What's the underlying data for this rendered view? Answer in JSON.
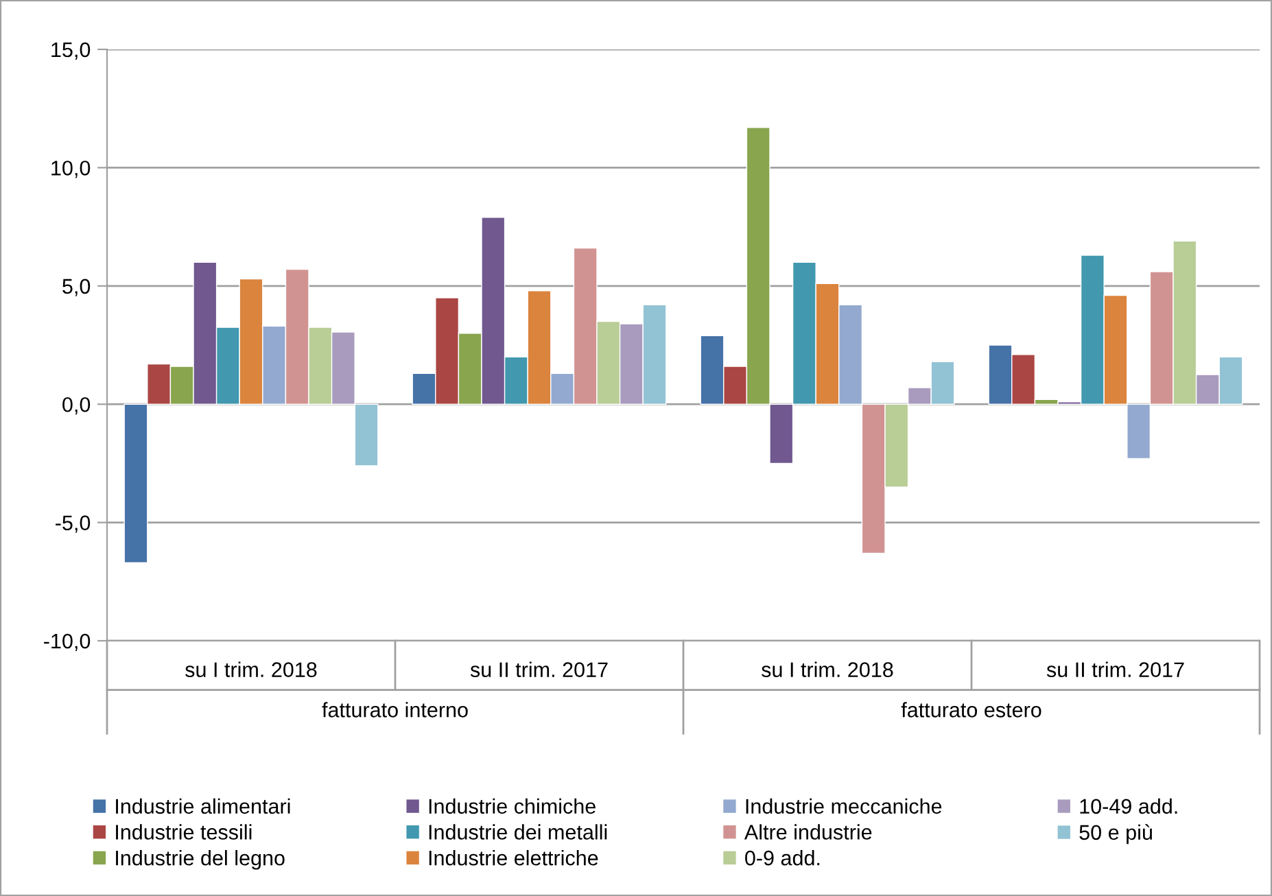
{
  "chart_data": {
    "type": "bar",
    "categories": [
      "su I trim. 2018",
      "su II trim. 2017",
      "su I trim. 2018",
      "su II trim. 2017"
    ],
    "annotations": [
      "fatturato interno",
      "fatturato estero"
    ],
    "ylim": [
      -10,
      15
    ],
    "yticks": [
      {
        "value": -10,
        "label": "-10,0"
      },
      {
        "value": -5,
        "label": "-5,0"
      },
      {
        "value": 0,
        "label": "0,0"
      },
      {
        "value": 5,
        "label": "5,0"
      },
      {
        "value": 10,
        "label": "10,0"
      },
      {
        "value": 15,
        "label": "15,0"
      }
    ],
    "grid": "y",
    "legend": "bottom",
    "series": [
      {
        "name": "Industrie alimentari",
        "color": "#4572a7",
        "values": [
          -6.7,
          1.3,
          2.9,
          2.5
        ]
      },
      {
        "name": "Industrie tessili",
        "color": "#aa4643",
        "values": [
          1.7,
          4.5,
          1.6,
          2.1
        ]
      },
      {
        "name": "Industrie del legno",
        "color": "#89a54e",
        "values": [
          1.6,
          3.0,
          11.7,
          0.2
        ]
      },
      {
        "name": "Industrie chimiche",
        "color": "#71588f",
        "values": [
          6.0,
          7.9,
          -2.5,
          0.1
        ]
      },
      {
        "name": "Industrie dei metalli",
        "color": "#4198af",
        "values": [
          3.25,
          2.0,
          6.0,
          6.3
        ]
      },
      {
        "name": "Industrie elettriche",
        "color": "#db843d",
        "values": [
          5.3,
          4.8,
          5.1,
          4.6
        ]
      },
      {
        "name": "Industrie meccaniche",
        "color": "#93a9cf",
        "values": [
          3.3,
          1.3,
          4.2,
          -2.3
        ]
      },
      {
        "name": "Altre industrie",
        "color": "#d19392",
        "values": [
          5.7,
          6.6,
          -6.3,
          5.6
        ]
      },
      {
        "name": "0-9 add.",
        "color": "#b9cd96",
        "values": [
          3.25,
          3.5,
          -3.5,
          6.9
        ]
      },
      {
        "name": "10-49 add.",
        "color": "#a99bbd",
        "values": [
          3.05,
          3.4,
          0.7,
          1.25
        ]
      },
      {
        "name": "50 e più",
        "color": "#92c3d5",
        "values": [
          -2.6,
          4.2,
          1.8,
          2.0
        ]
      }
    ]
  }
}
